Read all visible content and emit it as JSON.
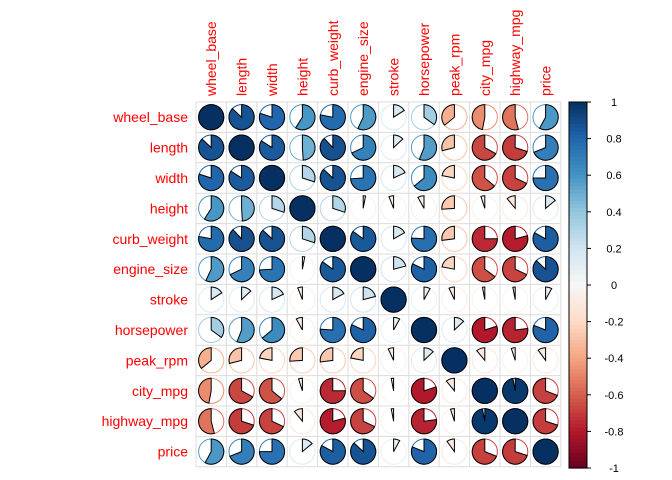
{
  "chart_data": {
    "type": "heatmap",
    "glyph": "pie",
    "title": "",
    "variables": [
      "wheel_base",
      "length",
      "width",
      "height",
      "curb_weight",
      "engine_size",
      "stroke",
      "horsepower",
      "peak_rpm",
      "city_mpg",
      "highway_mpg",
      "price"
    ],
    "matrix": [
      [
        1.0,
        0.87,
        0.8,
        0.59,
        0.78,
        0.57,
        0.16,
        0.35,
        -0.36,
        -0.47,
        -0.54,
        0.58
      ],
      [
        0.87,
        1.0,
        0.84,
        0.49,
        0.88,
        0.68,
        0.13,
        0.56,
        -0.29,
        -0.67,
        -0.7,
        0.69
      ],
      [
        0.8,
        0.84,
        1.0,
        0.3,
        0.87,
        0.74,
        0.18,
        0.64,
        -0.22,
        -0.64,
        -0.68,
        0.75
      ],
      [
        0.59,
        0.49,
        0.3,
        1.0,
        0.3,
        0.03,
        -0.06,
        -0.08,
        -0.26,
        -0.05,
        -0.11,
        0.14
      ],
      [
        0.78,
        0.88,
        0.87,
        0.3,
        1.0,
        0.85,
        0.17,
        0.76,
        -0.27,
        -0.75,
        -0.79,
        0.83
      ],
      [
        0.57,
        0.68,
        0.74,
        0.03,
        0.85,
        1.0,
        0.21,
        0.82,
        -0.22,
        -0.65,
        -0.68,
        0.87
      ],
      [
        0.16,
        0.13,
        0.18,
        -0.06,
        0.17,
        0.21,
        1.0,
        0.08,
        -0.07,
        -0.03,
        -0.03,
        0.08
      ],
      [
        0.35,
        0.56,
        0.64,
        -0.08,
        0.76,
        0.82,
        0.08,
        1.0,
        0.13,
        -0.8,
        -0.77,
        0.81
      ],
      [
        -0.36,
        -0.29,
        -0.22,
        -0.26,
        -0.27,
        -0.22,
        -0.07,
        0.13,
        1.0,
        -0.11,
        -0.05,
        -0.1
      ],
      [
        -0.47,
        -0.67,
        -0.64,
        -0.05,
        -0.75,
        -0.65,
        -0.03,
        -0.8,
        -0.11,
        1.0,
        0.97,
        -0.69
      ],
      [
        -0.54,
        -0.7,
        -0.68,
        -0.11,
        -0.79,
        -0.68,
        -0.03,
        -0.77,
        -0.05,
        0.97,
        1.0,
        -0.7
      ],
      [
        0.58,
        0.69,
        0.75,
        0.14,
        0.83,
        0.87,
        0.08,
        0.81,
        -0.1,
        -0.69,
        -0.7,
        1.0
      ]
    ],
    "colorbar": {
      "ticks": [
        "1",
        "0.8",
        "0.6",
        "0.4",
        "0.2",
        "0",
        "-0.2",
        "-0.4",
        "-0.6",
        "-0.8",
        "-1"
      ],
      "range": [
        -1,
        1
      ],
      "colors": {
        "pos": "#053061",
        "zero": "#f7f7f7",
        "neg": "#67001f"
      }
    },
    "label_color": "#ff0000"
  }
}
